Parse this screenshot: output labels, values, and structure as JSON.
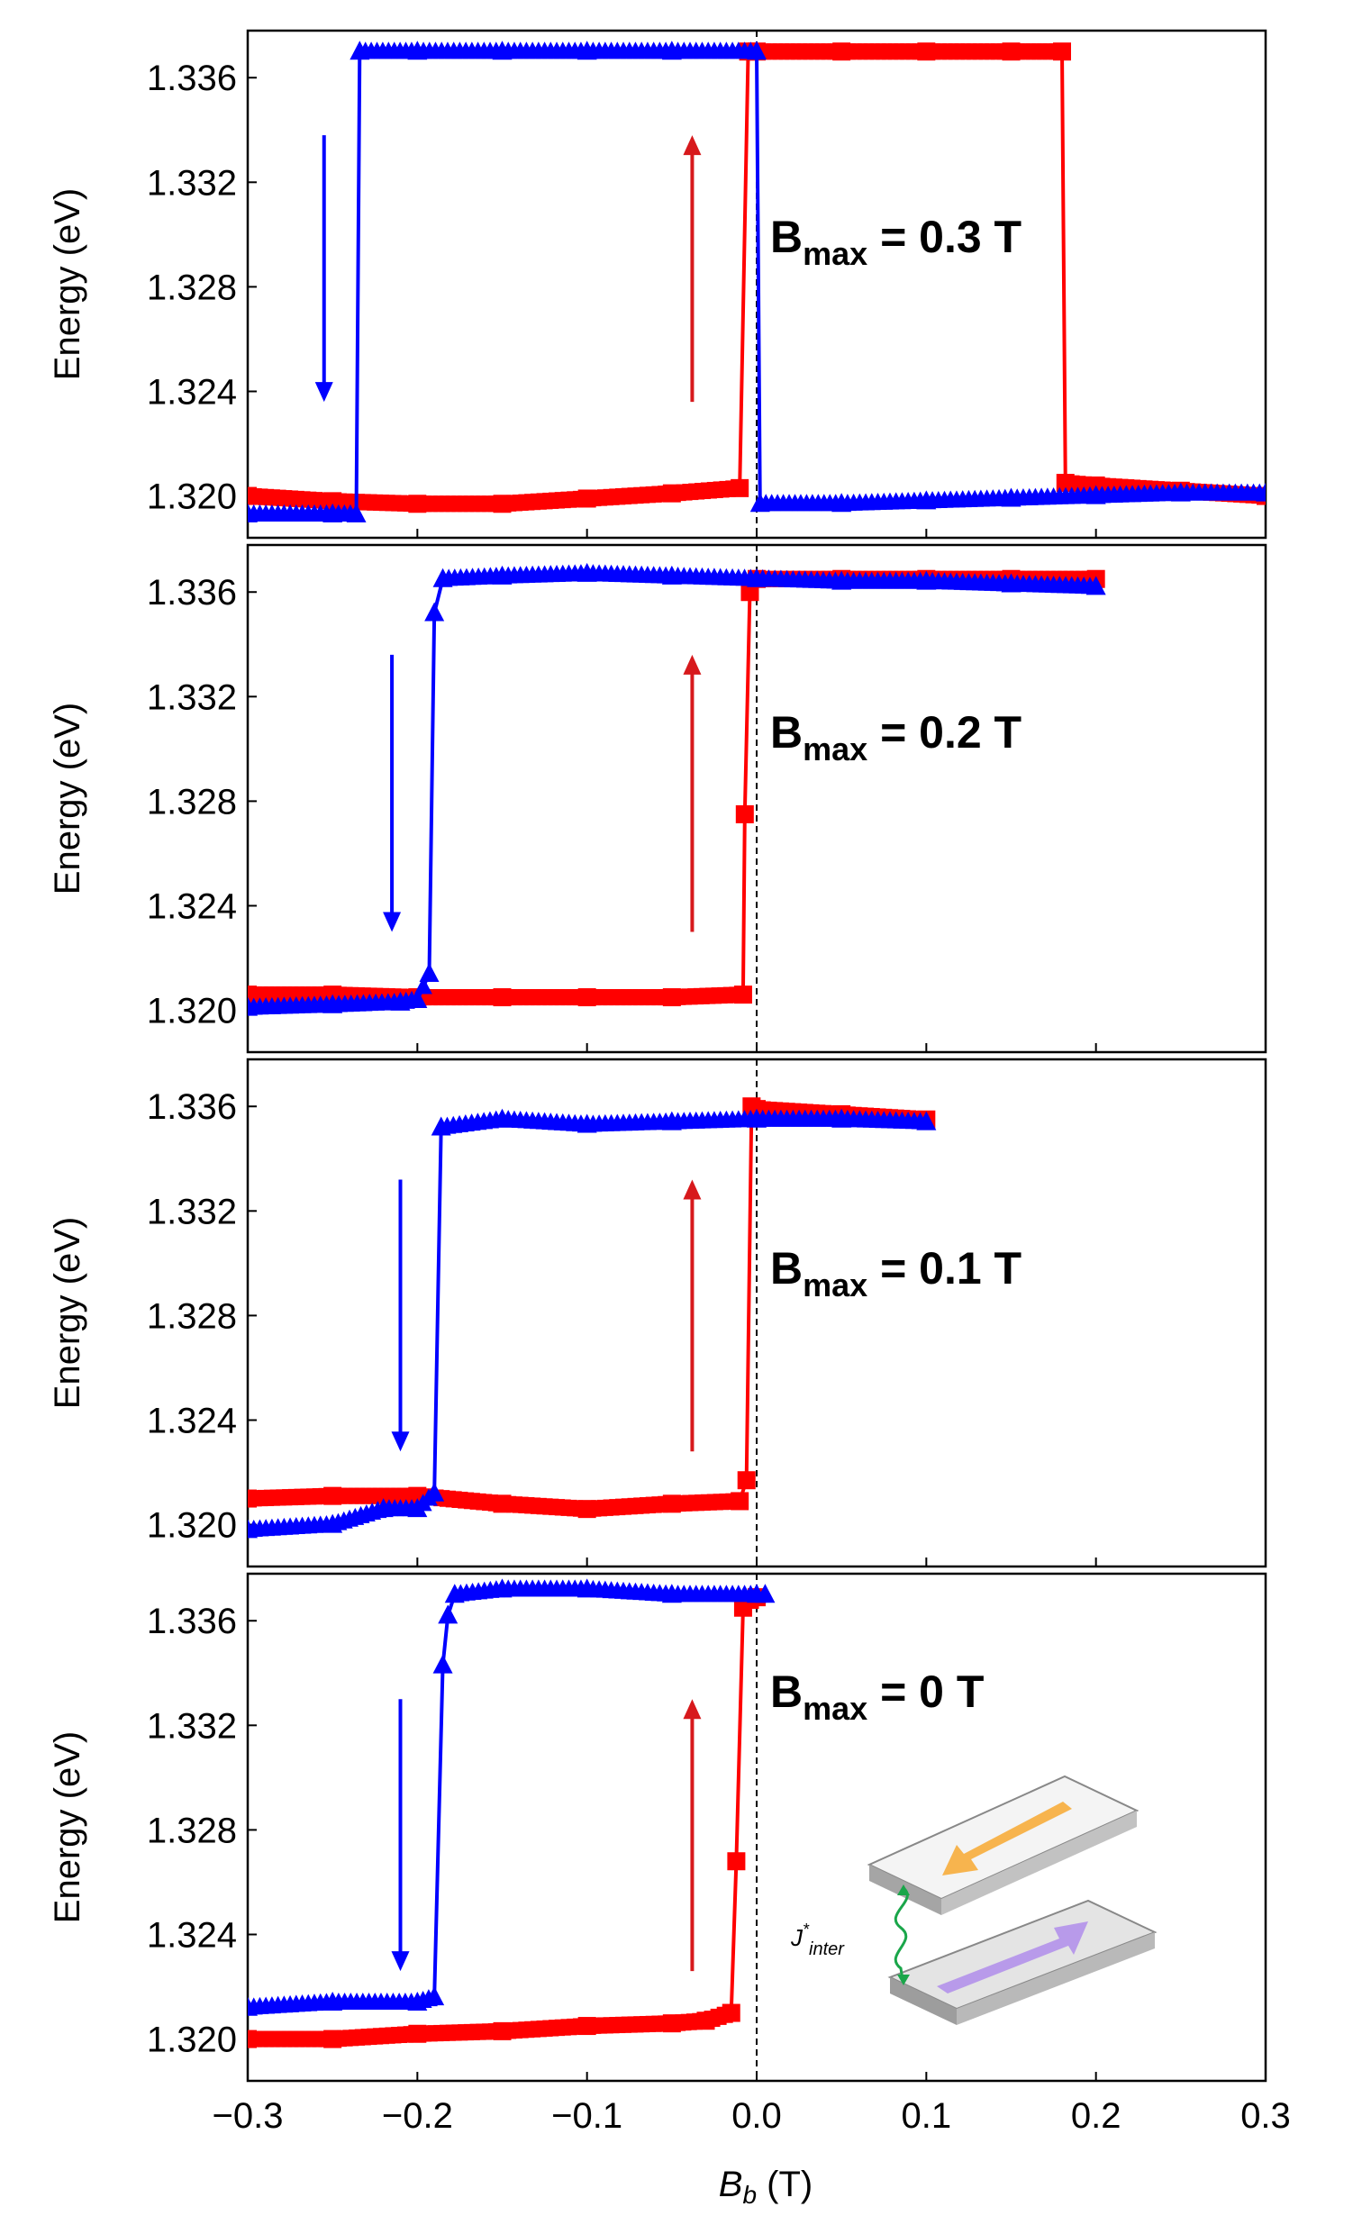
{
  "colors": {
    "sweep_up": "#ff0000",
    "sweep_down": "#0000ff",
    "arrow_up": "#d7191c",
    "arrow_down": "#0000ff",
    "frame": "#000000",
    "zero_line": "#000000",
    "inset_layer": "#d6d6d6",
    "inset_top_arrow": "#f5a623",
    "inset_bottom_arrow": "#a98be0",
    "inset_coupling": "#1aa64a"
  },
  "axes": {
    "x_title_main": "B",
    "x_title_sub": "b",
    "x_title_unit": " (T)",
    "y_title": "Energy (eV)",
    "x_ticks": [
      "−0.3",
      "−0.2",
      "−0.1",
      "0.0",
      "0.1",
      "0.2",
      "0.3"
    ],
    "y_ticks": [
      "1.320",
      "1.324",
      "1.328",
      "1.332",
      "1.336"
    ]
  },
  "panel_labels": [
    {
      "main": "B",
      "sub": "max",
      "rest": " = 0.3 T"
    },
    {
      "main": "B",
      "sub": "max",
      "rest": " = 0.2 T"
    },
    {
      "main": "B",
      "sub": "max",
      "rest": " = 0.1 T"
    },
    {
      "main": "B",
      "sub": "max",
      "rest": " = 0 T"
    }
  ],
  "inset": {
    "label_main": "J",
    "label_sup": "*",
    "label_sub": "inter"
  },
  "chart_data": [
    {
      "type": "line",
      "title": "Bmax = 0.3 T",
      "xlabel": "Bb (T)",
      "ylabel": "Energy (eV)",
      "xlim": [
        -0.3,
        0.3
      ],
      "ylim": [
        1.3184,
        1.3378
      ],
      "series": [
        {
          "marker": "square",
          "color": "red",
          "x": [
            -0.3,
            -0.25,
            -0.2,
            -0.15,
            -0.1,
            -0.05,
            -0.01,
            -0.005,
            0.0,
            0.05,
            0.1,
            0.15,
            0.18,
            0.182,
            0.2,
            0.25,
            0.3
          ],
          "y": [
            1.32,
            1.3198,
            1.3197,
            1.3197,
            1.3199,
            1.3201,
            1.3203,
            1.337,
            1.337,
            1.337,
            1.337,
            1.337,
            1.337,
            1.3205,
            1.3204,
            1.3202,
            1.32
          ]
        },
        {
          "marker": "triangle",
          "color": "blue",
          "x": [
            -0.3,
            -0.25,
            -0.236,
            -0.234,
            -0.2,
            -0.15,
            -0.1,
            -0.05,
            0.0,
            0.002,
            0.05,
            0.1,
            0.15,
            0.2,
            0.25,
            0.3
          ],
          "y": [
            1.3193,
            1.3193,
            1.3193,
            1.337,
            1.337,
            1.337,
            1.337,
            1.337,
            1.337,
            1.3197,
            1.3197,
            1.3198,
            1.3199,
            1.32,
            1.3201,
            1.3201
          ]
        }
      ],
      "arrows": [
        {
          "color": "blue",
          "direction": "down",
          "x": -0.255,
          "from": 1.3338,
          "to": 1.3236
        },
        {
          "color": "red",
          "direction": "up",
          "x": -0.038,
          "from": 1.3236,
          "to": 1.3338
        }
      ]
    },
    {
      "type": "line",
      "title": "Bmax = 0.2 T",
      "xlabel": "Bb (T)",
      "ylabel": "Energy (eV)",
      "xlim": [
        -0.3,
        0.3
      ],
      "ylim": [
        1.3184,
        1.3378
      ],
      "series": [
        {
          "marker": "square",
          "color": "red",
          "x": [
            -0.3,
            -0.25,
            -0.2,
            -0.15,
            -0.1,
            -0.05,
            -0.008,
            -0.007,
            -0.004,
            0.0,
            0.05,
            0.1,
            0.15,
            0.2
          ],
          "y": [
            1.3206,
            1.3206,
            1.3205,
            1.3205,
            1.3205,
            1.3205,
            1.3206,
            1.3275,
            1.336,
            1.3365,
            1.3365,
            1.3365,
            1.3365,
            1.3365
          ]
        },
        {
          "marker": "triangle",
          "color": "blue",
          "x": [
            -0.3,
            -0.25,
            -0.21,
            -0.2,
            -0.193,
            -0.19,
            -0.185,
            -0.15,
            -0.1,
            -0.05,
            0.0,
            0.05,
            0.1,
            0.15,
            0.2
          ],
          "y": [
            1.3201,
            1.3202,
            1.3203,
            1.3204,
            1.3214,
            1.3352,
            1.3365,
            1.3366,
            1.3367,
            1.3366,
            1.3365,
            1.3364,
            1.3364,
            1.3363,
            1.3362
          ]
        }
      ],
      "arrows": [
        {
          "color": "blue",
          "direction": "down",
          "x": -0.215,
          "from": 1.3336,
          "to": 1.323
        },
        {
          "color": "red",
          "direction": "up",
          "x": -0.038,
          "from": 1.323,
          "to": 1.3336
        }
      ]
    },
    {
      "type": "line",
      "title": "Bmax = 0.1 T",
      "xlabel": "Bb (T)",
      "ylabel": "Energy (eV)",
      "xlim": [
        -0.3,
        0.3
      ],
      "ylim": [
        1.3184,
        1.3378
      ],
      "series": [
        {
          "marker": "square",
          "color": "red",
          "x": [
            -0.3,
            -0.25,
            -0.2,
            -0.15,
            -0.1,
            -0.05,
            -0.01,
            -0.006,
            -0.003,
            0.0,
            0.05,
            0.1
          ],
          "y": [
            1.321,
            1.3211,
            1.3211,
            1.3208,
            1.3206,
            1.3208,
            1.3209,
            1.3217,
            1.336,
            1.3359,
            1.3357,
            1.3355
          ]
        },
        {
          "marker": "triangle",
          "color": "blue",
          "x": [
            -0.3,
            -0.25,
            -0.22,
            -0.2,
            -0.19,
            -0.186,
            -0.15,
            -0.1,
            -0.05,
            0.0,
            0.05,
            0.1
          ],
          "y": [
            1.3198,
            1.32,
            1.3206,
            1.3206,
            1.3212,
            1.3352,
            1.3355,
            1.3353,
            1.3354,
            1.3355,
            1.3355,
            1.3354
          ]
        }
      ],
      "arrows": [
        {
          "color": "blue",
          "direction": "down",
          "x": -0.21,
          "from": 1.3332,
          "to": 1.3228
        },
        {
          "color": "red",
          "direction": "up",
          "x": -0.038,
          "from": 1.3228,
          "to": 1.3332
        }
      ]
    },
    {
      "type": "line",
      "title": "Bmax = 0 T",
      "xlabel": "Bb (T)",
      "ylabel": "Energy (eV)",
      "xlim": [
        -0.3,
        0.3
      ],
      "ylim": [
        1.3184,
        1.3378
      ],
      "series": [
        {
          "marker": "square",
          "color": "red",
          "x": [
            -0.3,
            -0.25,
            -0.2,
            -0.15,
            -0.1,
            -0.05,
            -0.03,
            -0.015,
            -0.012,
            -0.008,
            -0.004,
            0.0
          ],
          "y": [
            1.32,
            1.32,
            1.3202,
            1.3203,
            1.3205,
            1.3206,
            1.3207,
            1.321,
            1.3268,
            1.3365,
            1.3368,
            1.3369
          ]
        },
        {
          "marker": "triangle",
          "color": "blue",
          "x": [
            -0.3,
            -0.25,
            -0.2,
            -0.19,
            -0.185,
            -0.182,
            -0.178,
            -0.15,
            -0.1,
            -0.05,
            0.0,
            0.005
          ],
          "y": [
            1.3212,
            1.3214,
            1.3214,
            1.3216,
            1.3343,
            1.3362,
            1.337,
            1.3372,
            1.3372,
            1.337,
            1.337,
            1.337
          ]
        }
      ],
      "arrows": [
        {
          "color": "blue",
          "direction": "down",
          "x": -0.21,
          "from": 1.333,
          "to": 1.3226
        },
        {
          "color": "red",
          "direction": "up",
          "x": -0.038,
          "from": 1.3226,
          "to": 1.333
        }
      ]
    }
  ]
}
